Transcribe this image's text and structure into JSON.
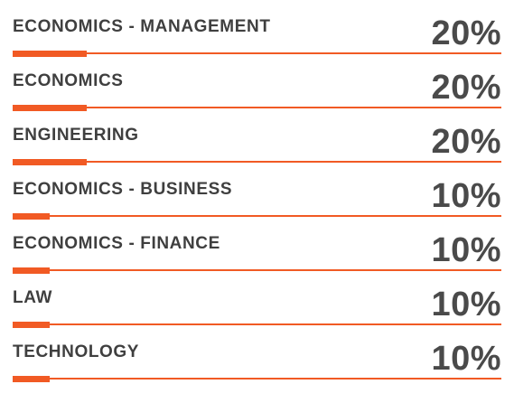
{
  "chart_data": {
    "type": "bar",
    "orientation": "horizontal",
    "categories": [
      "ECONOMICS - MANAGEMENT",
      "ECONOMICS",
      "ENGINEERING",
      "ECONOMICS - BUSINESS",
      "ECONOMICS - FINANCE",
      "LAW",
      "TECHNOLOGY"
    ],
    "values": [
      20,
      20,
      20,
      10,
      10,
      10,
      10
    ],
    "value_labels": [
      "20%",
      "20%",
      "20%",
      "10%",
      "10%",
      "10%",
      "10%"
    ],
    "unit": "%",
    "xlim": [
      0,
      100
    ],
    "grid": false,
    "legend": "none",
    "colors": {
      "bar": "#f15a24",
      "label": "#3f3f3f",
      "value": "#4a4a4a"
    }
  }
}
